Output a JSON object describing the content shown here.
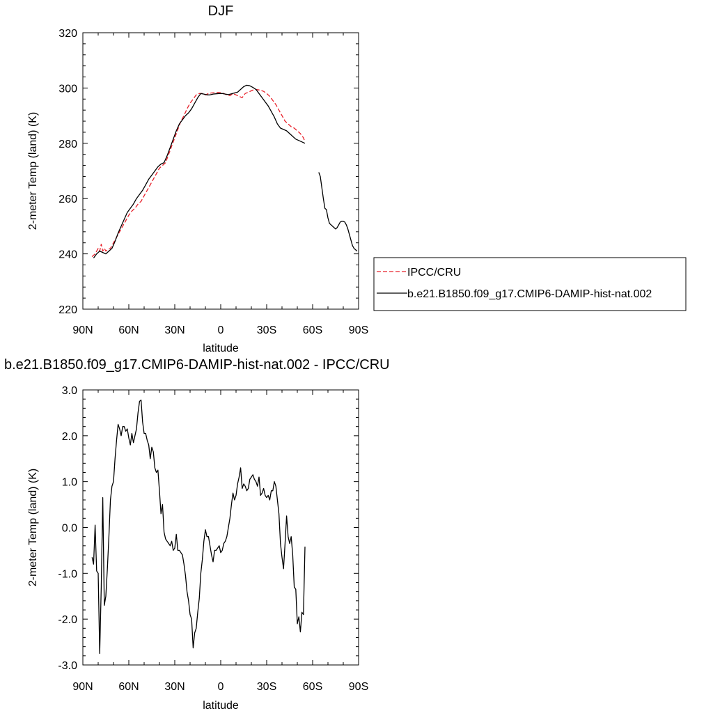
{
  "chart_data": [
    {
      "type": "line",
      "title": "DJF",
      "xlabel": "latitude",
      "ylabel": "2-meter Temp (land) (K)",
      "xlim": [
        90,
        -90
      ],
      "ylim": [
        220,
        320
      ],
      "x_ticks": [
        {
          "value": 90,
          "label": "90N"
        },
        {
          "value": 60,
          "label": "60N"
        },
        {
          "value": 30,
          "label": "30N"
        },
        {
          "value": 0,
          "label": "0"
        },
        {
          "value": -30,
          "label": "30S"
        },
        {
          "value": -60,
          "label": "60S"
        },
        {
          "value": -90,
          "label": "90S"
        }
      ],
      "y_ticks": [
        {
          "value": 220,
          "label": "220"
        },
        {
          "value": 240,
          "label": "240"
        },
        {
          "value": 260,
          "label": "260"
        },
        {
          "value": 280,
          "label": "280"
        },
        {
          "value": 300,
          "label": "300"
        },
        {
          "value": 320,
          "label": "320"
        }
      ],
      "legend": {
        "placement": "right",
        "entries": [
          {
            "name": "IPCC/CRU",
            "color": "#e8202a",
            "dash": "dashed"
          },
          {
            "name": "b.e21.B1850.f09_g17.CMIP6-DAMIP-hist-nat.002",
            "color": "#000000",
            "dash": "solid"
          }
        ]
      },
      "series": [
        {
          "name": "IPCC/CRU",
          "color": "#e8202a",
          "dash": "dashed",
          "segments": [
            {
              "x": [
                84,
                82,
                80,
                79,
                78,
                77,
                76,
                75,
                74,
                72,
                70,
                68,
                66,
                64,
                62,
                60,
                58,
                56,
                54,
                52,
                50,
                48,
                46,
                44,
                42,
                40,
                38,
                36,
                34,
                32,
                30,
                28,
                26,
                24,
                22,
                20,
                18,
                16,
                14,
                12,
                10,
                8,
                6,
                4,
                2,
                0,
                -2,
                -4,
                -6,
                -8,
                -10,
                -12,
                -14,
                -16,
                -18,
                -20,
                -22,
                -24,
                -26,
                -28,
                -30,
                -32,
                -34,
                -36,
                -38,
                -40,
                -42,
                -44,
                -46,
                -48,
                -50,
                -52,
                -54,
                -55
              ],
              "y": [
                239,
                240,
                242,
                241,
                243.5,
                241,
                242,
                241,
                241.5,
                242,
                244,
                246,
                248,
                250,
                252,
                254,
                255.5,
                256.5,
                258,
                259,
                261,
                263,
                265,
                267,
                269,
                271,
                272,
                273,
                276,
                279,
                282,
                285,
                288,
                290,
                292.5,
                294.5,
                296,
                297.5,
                298,
                298,
                297.5,
                298,
                298.2,
                298.3,
                298.4,
                298.3,
                298,
                297.5,
                297.2,
                298,
                297.5,
                297,
                296.5,
                298,
                298.5,
                299,
                299.5,
                299.4,
                299.2,
                298.8,
                298,
                297,
                295.5,
                294,
                292,
                290,
                288,
                287,
                286,
                285.5,
                284.5,
                283.5,
                282,
                280.5
              ]
            }
          ]
        },
        {
          "name": "b.e21.B1850.f09_g17.CMIP6-DAMIP-hist-nat.002",
          "color": "#000000",
          "dash": "solid",
          "segments": [
            {
              "x": [
                83,
                81,
                79,
                77,
                75,
                73,
                71,
                69,
                67,
                65,
                63,
                61,
                59,
                57,
                55,
                53,
                51,
                49,
                47,
                45,
                43,
                41,
                39,
                37,
                35,
                33,
                31,
                29,
                27,
                25,
                23,
                21,
                19,
                17,
                15,
                13,
                11,
                9,
                7,
                5,
                3,
                1,
                -1,
                -3,
                -5,
                -7,
                -9,
                -11,
                -13,
                -15,
                -17,
                -19,
                -21,
                -23,
                -25,
                -27,
                -29,
                -31,
                -33,
                -35,
                -37,
                -39,
                -41,
                -43,
                -45,
                -47,
                -49,
                -51,
                -53,
                -55
              ],
              "y": [
                238.5,
                240,
                241,
                240.5,
                240,
                241,
                242,
                244.5,
                247.5,
                250,
                252.5,
                255,
                256.5,
                258,
                260,
                261.5,
                263,
                265,
                267,
                268.5,
                270,
                271.5,
                272.5,
                273,
                275.5,
                278.5,
                281.5,
                284.5,
                287,
                288.5,
                290,
                291,
                292.5,
                294.5,
                296.5,
                298,
                297.8,
                297.5,
                297.5,
                297.8,
                297.9,
                298,
                298,
                297.8,
                297.6,
                297.9,
                298.2,
                298.5,
                299.5,
                300.5,
                301,
                300.8,
                300.2,
                299.5,
                298,
                296.5,
                295,
                293.5,
                291.5,
                289.5,
                287,
                285.5,
                285,
                284.5,
                283.5,
                282.5,
                281.5,
                281,
                280.5,
                280
              ]
            },
            {
              "x": [
                -64,
                -65,
                -66,
                -67,
                -68,
                -69,
                -70,
                -71,
                -72,
                -73,
                -74,
                -75,
                -76,
                -77,
                -78,
                -79,
                -80,
                -81,
                -82,
                -83,
                -84,
                -85,
                -86,
                -87,
                -88,
                -89
              ],
              "y": [
                269.5,
                268,
                264,
                260,
                256.5,
                256,
                253,
                251,
                250.5,
                250,
                249.5,
                249,
                249.5,
                250.5,
                251.5,
                251.8,
                251.8,
                251.5,
                250.5,
                249,
                247,
                245,
                243,
                242,
                241.5,
                241
              ]
            }
          ]
        }
      ]
    },
    {
      "type": "line",
      "title": "b.e21.B1850.f09_g17.CMIP6-DAMIP-hist-nat.002 - IPCC/CRU",
      "xlabel": "latitude",
      "ylabel": "2-meter Temp (land) (K)",
      "xlim": [
        90,
        -90
      ],
      "ylim": [
        -3.0,
        3.0
      ],
      "x_ticks": [
        {
          "value": 90,
          "label": "90N"
        },
        {
          "value": 60,
          "label": "60N"
        },
        {
          "value": 30,
          "label": "30N"
        },
        {
          "value": 0,
          "label": "0"
        },
        {
          "value": -30,
          "label": "30S"
        },
        {
          "value": -60,
          "label": "60S"
        },
        {
          "value": -90,
          "label": "90S"
        }
      ],
      "y_ticks": [
        {
          "value": -3.0,
          "label": "-3.0"
        },
        {
          "value": -2.0,
          "label": "-2.0"
        },
        {
          "value": -1.0,
          "label": "-1.0"
        },
        {
          "value": 0.0,
          "label": "0.0"
        },
        {
          "value": 1.0,
          "label": "1.0"
        },
        {
          "value": 2.0,
          "label": "2.0"
        },
        {
          "value": 3.0,
          "label": "3.0"
        }
      ],
      "series": [
        {
          "color": "#000000",
          "dash": "solid",
          "segments": [
            {
              "x": [
                84,
                83,
                82,
                81,
                80,
                79,
                78,
                77,
                76,
                75,
                74,
                73,
                72,
                71,
                70,
                69,
                68,
                67,
                66,
                65,
                64,
                63,
                62,
                61,
                60,
                59,
                58,
                57,
                56,
                55,
                54,
                53,
                52,
                51,
                50,
                49,
                48,
                47,
                46,
                45,
                44,
                43,
                42,
                41,
                40,
                39,
                38,
                37,
                36,
                35,
                34,
                33,
                32,
                31,
                30,
                29,
                28,
                27,
                26,
                25,
                24,
                23,
                22,
                21,
                20,
                19,
                18,
                17,
                16,
                15,
                14,
                13,
                12,
                11,
                10,
                9,
                8,
                7,
                6,
                5,
                4,
                3,
                2,
                1,
                0,
                -1,
                -2,
                -3,
                -4,
                -5,
                -6,
                -7,
                -8,
                -9,
                -10,
                -11,
                -12,
                -13,
                -14,
                -15,
                -16,
                -17,
                -18,
                -19,
                -20,
                -21,
                -22,
                -23,
                -24,
                -25,
                -26,
                -27,
                -28,
                -29,
                -30,
                -31,
                -32,
                -33,
                -34,
                -35,
                -36,
                -37,
                -38,
                -39,
                -40,
                -41,
                -42,
                -43,
                -44,
                -45,
                -46,
                -47,
                -48,
                -49,
                -50,
                -51,
                -52,
                -53,
                -54,
                -55
              ],
              "y": [
                -0.65,
                -0.8,
                0.05,
                -0.95,
                -1.0,
                -2.75,
                -1.3,
                0.65,
                -1.7,
                -1.5,
                -0.9,
                -0.2,
                0.6,
                0.9,
                1.0,
                1.5,
                1.9,
                2.25,
                2.15,
                2.0,
                2.2,
                2.2,
                2.1,
                2.15,
                1.95,
                1.8,
                2.05,
                1.85,
                2.0,
                2.15,
                2.5,
                2.75,
                2.78,
                2.3,
                2.05,
                2.05,
                1.9,
                1.8,
                1.5,
                1.75,
                1.65,
                1.3,
                1.2,
                1.25,
                0.8,
                0.3,
                0.5,
                -0.1,
                -0.25,
                -0.3,
                -0.35,
                -0.4,
                -0.3,
                -0.5,
                -0.45,
                -0.15,
                -0.5,
                -0.5,
                -0.55,
                -0.6,
                -0.8,
                -1.05,
                -1.4,
                -1.6,
                -1.9,
                -2.0,
                -2.63,
                -2.3,
                -2.2,
                -1.85,
                -1.55,
                -1.0,
                -0.7,
                -0.3,
                -0.05,
                -0.2,
                -0.2,
                -0.4,
                -0.6,
                -0.75,
                -0.5,
                -0.5,
                -0.45,
                -0.4,
                -0.55,
                -0.5,
                -0.35,
                -0.3,
                -0.2,
                0.0,
                0.2,
                0.5,
                0.75,
                0.6,
                0.7,
                0.95,
                1.1,
                1.3,
                0.85,
                0.95,
                0.9,
                0.8,
                0.85,
                1.05,
                1.1,
                1.15,
                1.05,
                1.0,
                0.9,
                1.1,
                0.7,
                0.75,
                0.85,
                0.7,
                0.65,
                0.7,
                0.6,
                0.8,
                0.8,
                1.0,
                0.9,
                0.6,
                0.3,
                -0.35,
                -0.65,
                -0.9,
                -0.35,
                0.25,
                -0.2,
                -0.35,
                -0.2,
                -0.6,
                -1.3,
                -1.35,
                -2.1,
                -1.95,
                -2.28,
                -1.85,
                -1.9,
                -0.42
              ]
            }
          ]
        }
      ]
    }
  ]
}
